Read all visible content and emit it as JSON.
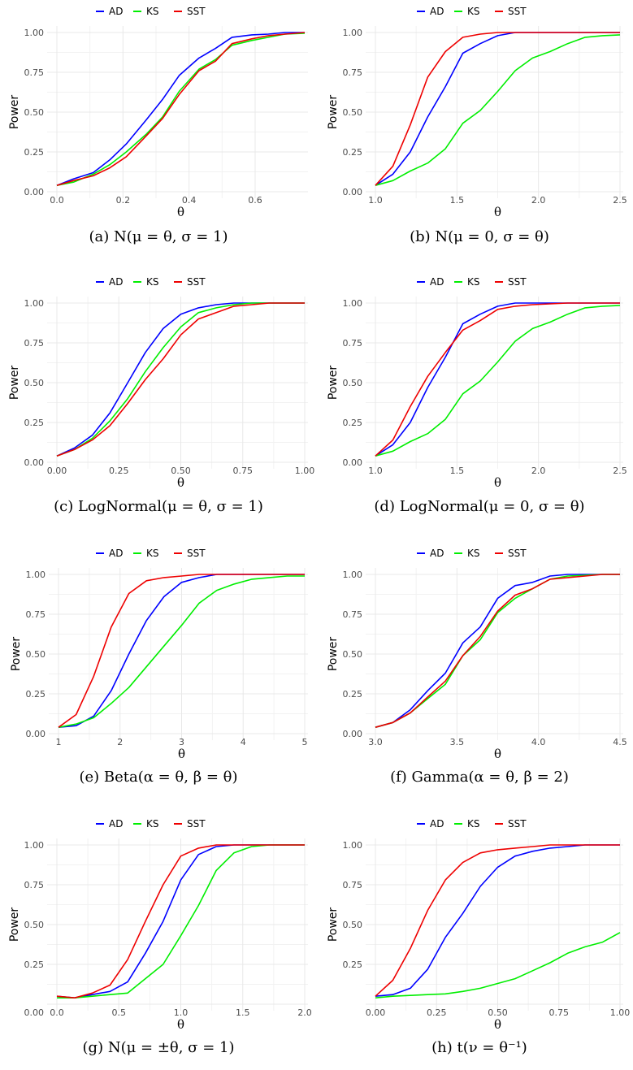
{
  "ylabel": "Power",
  "xlabel": "θ",
  "legend_labels": [
    "AD",
    "KS",
    "SST"
  ],
  "series_colors": {
    "AD": "#0000ff",
    "KS": "#00ee00",
    "SST": "#ee0000"
  },
  "chart_data": [
    {
      "type": "line",
      "caption": "(a) N(μ = θ, σ = 1)",
      "xlim": [
        0,
        0.75
      ],
      "ylim": [
        0,
        1
      ],
      "xticks": [
        0,
        0.2,
        0.4,
        0.6
      ],
      "xtick_labels": [
        "0.0",
        "0.2",
        "0.4",
        "0.6"
      ],
      "yticks": [
        0,
        0.25,
        0.5,
        0.75,
        1
      ],
      "ytick_labels": [
        "0.00",
        "0.25",
        "0.50",
        "0.75",
        "1.00"
      ],
      "x": [
        0,
        0.05,
        0.11,
        0.16,
        0.21,
        0.27,
        0.32,
        0.37,
        0.43,
        0.48,
        0.53,
        0.59,
        0.64,
        0.69,
        0.75
      ],
      "series": [
        {
          "name": "AD",
          "values": [
            0.04,
            0.08,
            0.12,
            0.2,
            0.3,
            0.45,
            0.58,
            0.73,
            0.84,
            0.9,
            0.97,
            0.985,
            0.99,
            1.0,
            1.0
          ]
        },
        {
          "name": "KS",
          "values": [
            0.04,
            0.06,
            0.11,
            0.17,
            0.25,
            0.36,
            0.47,
            0.63,
            0.77,
            0.83,
            0.92,
            0.95,
            0.97,
            0.99,
            0.995
          ]
        },
        {
          "name": "SST",
          "values": [
            0.04,
            0.07,
            0.1,
            0.15,
            0.22,
            0.35,
            0.46,
            0.61,
            0.76,
            0.82,
            0.93,
            0.96,
            0.98,
            0.99,
            1.0
          ]
        }
      ]
    },
    {
      "type": "line",
      "caption": "(b) N(μ = 0, σ = θ)",
      "xlim": [
        1.0,
        2.5
      ],
      "ylim": [
        0,
        1
      ],
      "xticks": [
        1.0,
        1.5,
        2.0,
        2.5
      ],
      "xtick_labels": [
        "1.0",
        "1.5",
        "2.0",
        "2.5"
      ],
      "yticks": [
        0,
        0.25,
        0.5,
        0.75,
        1
      ],
      "ytick_labels": [
        "0.00",
        "0.25",
        "0.50",
        "0.75",
        "1.00"
      ],
      "x": [
        1.0,
        1.107,
        1.214,
        1.321,
        1.429,
        1.536,
        1.643,
        1.75,
        1.857,
        1.964,
        2.071,
        2.179,
        2.286,
        2.393,
        2.5
      ],
      "series": [
        {
          "name": "AD",
          "values": [
            0.04,
            0.11,
            0.25,
            0.47,
            0.66,
            0.87,
            0.93,
            0.98,
            1.0,
            1.0,
            1.0,
            1.0,
            1.0,
            1.0,
            1.0
          ]
        },
        {
          "name": "KS",
          "values": [
            0.04,
            0.07,
            0.13,
            0.18,
            0.27,
            0.43,
            0.51,
            0.63,
            0.76,
            0.84,
            0.88,
            0.93,
            0.97,
            0.98,
            0.985
          ]
        },
        {
          "name": "SST",
          "values": [
            0.04,
            0.16,
            0.42,
            0.72,
            0.88,
            0.97,
            0.99,
            1.0,
            1.0,
            1.0,
            1.0,
            1.0,
            1.0,
            1.0,
            1.0
          ]
        }
      ]
    },
    {
      "type": "line",
      "caption": "(c) LogNormal(μ = θ, σ = 1)",
      "xlim": [
        0,
        1.0
      ],
      "ylim": [
        0,
        1
      ],
      "xticks": [
        0,
        0.25,
        0.5,
        0.75,
        1.0
      ],
      "xtick_labels": [
        "0.00",
        "0.25",
        "0.50",
        "0.75",
        "1.00"
      ],
      "yticks": [
        0,
        0.25,
        0.5,
        0.75,
        1
      ],
      "ytick_labels": [
        "0.00",
        "0.25",
        "0.50",
        "0.75",
        "1.00"
      ],
      "x": [
        0,
        0.071,
        0.143,
        0.214,
        0.286,
        0.357,
        0.429,
        0.5,
        0.571,
        0.643,
        0.714,
        0.786,
        0.857,
        0.929,
        1.0
      ],
      "series": [
        {
          "name": "AD",
          "values": [
            0.04,
            0.09,
            0.17,
            0.31,
            0.5,
            0.69,
            0.84,
            0.93,
            0.97,
            0.99,
            1.0,
            1.0,
            1.0,
            1.0,
            1.0
          ]
        },
        {
          "name": "KS",
          "values": [
            0.04,
            0.08,
            0.15,
            0.26,
            0.4,
            0.57,
            0.72,
            0.85,
            0.94,
            0.97,
            0.99,
            1.0,
            1.0,
            1.0,
            1.0
          ]
        },
        {
          "name": "SST",
          "values": [
            0.04,
            0.08,
            0.14,
            0.23,
            0.37,
            0.52,
            0.65,
            0.8,
            0.9,
            0.94,
            0.98,
            0.99,
            1.0,
            1.0,
            1.0
          ]
        }
      ]
    },
    {
      "type": "line",
      "caption": "(d) LogNormal(μ = 0, σ = θ)",
      "xlim": [
        1.0,
        2.5
      ],
      "ylim": [
        0,
        1
      ],
      "xticks": [
        1.0,
        1.5,
        2.0,
        2.5
      ],
      "xtick_labels": [
        "1.0",
        "1.5",
        "2.0",
        "2.5"
      ],
      "yticks": [
        0,
        0.25,
        0.5,
        0.75,
        1
      ],
      "ytick_labels": [
        "0.00",
        "0.25",
        "0.50",
        "0.75",
        "1.00"
      ],
      "x": [
        1.0,
        1.107,
        1.214,
        1.321,
        1.429,
        1.536,
        1.643,
        1.75,
        1.857,
        1.964,
        2.071,
        2.179,
        2.286,
        2.393,
        2.5
      ],
      "series": [
        {
          "name": "AD",
          "values": [
            0.04,
            0.11,
            0.25,
            0.47,
            0.66,
            0.87,
            0.93,
            0.98,
            1.0,
            1.0,
            1.0,
            1.0,
            1.0,
            1.0,
            1.0
          ]
        },
        {
          "name": "KS",
          "values": [
            0.04,
            0.07,
            0.13,
            0.18,
            0.27,
            0.43,
            0.51,
            0.63,
            0.76,
            0.84,
            0.88,
            0.93,
            0.97,
            0.98,
            0.985
          ]
        },
        {
          "name": "SST",
          "values": [
            0.04,
            0.14,
            0.35,
            0.54,
            0.69,
            0.83,
            0.89,
            0.96,
            0.98,
            0.99,
            0.995,
            1.0,
            1.0,
            1.0,
            1.0
          ]
        }
      ]
    },
    {
      "type": "line",
      "caption": "(e) Beta(α = θ, β = θ)",
      "xlim": [
        1,
        5
      ],
      "ylim": [
        0,
        1
      ],
      "xticks": [
        1,
        2,
        3,
        4,
        5
      ],
      "xtick_labels": [
        "1",
        "2",
        "3",
        "4",
        "5"
      ],
      "yticks": [
        0,
        0.25,
        0.5,
        0.75,
        1
      ],
      "ytick_labels": [
        "0.00",
        "0.25",
        "0.50",
        "0.75",
        "1.00"
      ],
      "x": [
        1,
        1.286,
        1.571,
        1.857,
        2.143,
        2.429,
        2.714,
        3.0,
        3.286,
        3.571,
        3.857,
        4.143,
        4.429,
        4.714,
        5.0
      ],
      "series": [
        {
          "name": "AD",
          "values": [
            0.04,
            0.05,
            0.11,
            0.27,
            0.5,
            0.71,
            0.86,
            0.95,
            0.98,
            1.0,
            1.0,
            1.0,
            1.0,
            1.0,
            1.0
          ]
        },
        {
          "name": "KS",
          "values": [
            0.04,
            0.06,
            0.1,
            0.19,
            0.29,
            0.42,
            0.55,
            0.68,
            0.82,
            0.9,
            0.94,
            0.97,
            0.98,
            0.99,
            0.99
          ]
        },
        {
          "name": "SST",
          "values": [
            0.04,
            0.12,
            0.36,
            0.67,
            0.88,
            0.96,
            0.98,
            0.99,
            1.0,
            1.0,
            1.0,
            1.0,
            1.0,
            1.0,
            1.0
          ]
        }
      ]
    },
    {
      "type": "line",
      "caption": "(f) Gamma(α = θ, β = 2)",
      "xlim": [
        3.0,
        4.5
      ],
      "ylim": [
        0,
        1
      ],
      "xticks": [
        3.0,
        3.5,
        4.0,
        4.5
      ],
      "xtick_labels": [
        "3.0",
        "3.5",
        "4.0",
        "4.5"
      ],
      "yticks": [
        0,
        0.25,
        0.5,
        0.75,
        1
      ],
      "ytick_labels": [
        "0.00",
        "0.25",
        "0.50",
        "0.75",
        "1.00"
      ],
      "x": [
        3.0,
        3.107,
        3.214,
        3.321,
        3.429,
        3.536,
        3.643,
        3.75,
        3.857,
        3.964,
        4.071,
        4.179,
        4.286,
        4.393,
        4.5
      ],
      "series": [
        {
          "name": "AD",
          "values": [
            0.04,
            0.07,
            0.15,
            0.27,
            0.38,
            0.57,
            0.67,
            0.85,
            0.93,
            0.95,
            0.99,
            1.0,
            1.0,
            1.0,
            1.0
          ]
        },
        {
          "name": "KS",
          "values": [
            0.04,
            0.07,
            0.13,
            0.22,
            0.31,
            0.49,
            0.59,
            0.76,
            0.85,
            0.91,
            0.97,
            0.99,
            0.995,
            1.0,
            1.0
          ]
        },
        {
          "name": "SST",
          "values": [
            0.04,
            0.07,
            0.13,
            0.23,
            0.33,
            0.49,
            0.61,
            0.77,
            0.87,
            0.91,
            0.97,
            0.98,
            0.99,
            1.0,
            1.0
          ]
        }
      ]
    },
    {
      "type": "line",
      "caption": "(g) N(μ = ±θ, σ = 1)",
      "xlim": [
        0,
        2.0
      ],
      "ylim": [
        0,
        1
      ],
      "xticks": [
        0,
        0.5,
        1.0,
        1.5,
        2.0
      ],
      "xtick_labels": [
        "0.0",
        "0.5",
        "1.0",
        "1.5",
        "2.0"
      ],
      "yticks": [
        0.25,
        0.5,
        0.75,
        1
      ],
      "ytick_labels": [
        "0.25",
        "0.50",
        "0.75",
        "1.00"
      ],
      "extra_ytick_label": "0.00",
      "x": [
        0,
        0.143,
        0.286,
        0.429,
        0.571,
        0.714,
        0.857,
        1.0,
        1.143,
        1.286,
        1.429,
        1.571,
        1.714,
        1.857,
        2.0
      ],
      "series": [
        {
          "name": "AD",
          "values": [
            0.05,
            0.04,
            0.06,
            0.08,
            0.14,
            0.32,
            0.52,
            0.78,
            0.94,
            0.99,
            1.0,
            1.0,
            1.0,
            1.0,
            1.0
          ]
        },
        {
          "name": "KS",
          "values": [
            0.04,
            0.04,
            0.05,
            0.06,
            0.07,
            0.16,
            0.25,
            0.43,
            0.62,
            0.84,
            0.95,
            0.99,
            1.0,
            1.0,
            1.0
          ]
        },
        {
          "name": "SST",
          "values": [
            0.05,
            0.04,
            0.07,
            0.12,
            0.28,
            0.52,
            0.75,
            0.93,
            0.98,
            1.0,
            1.0,
            1.0,
            1.0,
            1.0,
            1.0
          ]
        }
      ]
    },
    {
      "type": "line",
      "caption": "(h) t(ν = θ⁻¹)",
      "xlim": [
        0,
        1.0
      ],
      "ylim": [
        0,
        1
      ],
      "xticks": [
        0,
        0.25,
        0.5,
        0.75,
        1.0
      ],
      "xtick_labels": [
        "0.00",
        "0.25",
        "0.50",
        "0.75",
        "1.00"
      ],
      "yticks": [
        0.25,
        0.5,
        0.75,
        1
      ],
      "ytick_labels": [
        "0.25",
        "0.50",
        "0.75",
        "1.00"
      ],
      "x": [
        0,
        0.071,
        0.143,
        0.214,
        0.286,
        0.357,
        0.429,
        0.5,
        0.571,
        0.643,
        0.714,
        0.786,
        0.857,
        0.929,
        1.0
      ],
      "series": [
        {
          "name": "AD",
          "values": [
            0.05,
            0.06,
            0.1,
            0.22,
            0.42,
            0.57,
            0.74,
            0.86,
            0.93,
            0.96,
            0.98,
            0.99,
            1.0,
            1.0,
            1.0
          ]
        },
        {
          "name": "KS",
          "values": [
            0.04,
            0.05,
            0.055,
            0.06,
            0.065,
            0.08,
            0.1,
            0.13,
            0.16,
            0.21,
            0.26,
            0.32,
            0.36,
            0.39,
            0.45
          ]
        },
        {
          "name": "SST",
          "values": [
            0.05,
            0.15,
            0.35,
            0.59,
            0.78,
            0.89,
            0.95,
            0.97,
            0.98,
            0.99,
            1.0,
            1.0,
            1.0,
            1.0,
            1.0
          ]
        }
      ]
    }
  ]
}
